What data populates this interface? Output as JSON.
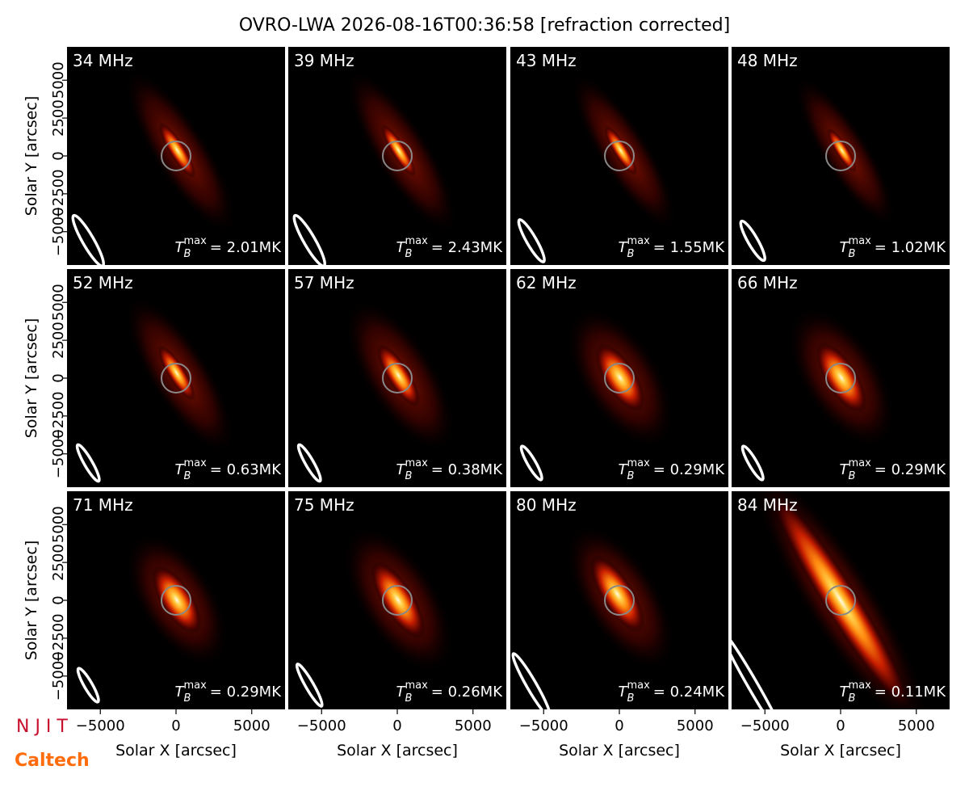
{
  "title": "OVRO-LWA 2026-08-16T00:36:58 [refraction corrected]",
  "axes": {
    "xlabel": "Solar X [arcsec]",
    "ylabel": "Solar Y [arcsec]",
    "xlim": [
      -7200,
      7200
    ],
    "ylim": [
      -7200,
      7200
    ],
    "xticks": [
      {
        "value": -5000,
        "label": "−5000"
      },
      0,
      5000
    ],
    "yticks": [
      {
        "value": -5000,
        "label": "−5000"
      },
      {
        "value": -2500,
        "label": "−2500"
      },
      0,
      2500,
      5000
    ]
  },
  "tmax_symbol": {
    "base": "T",
    "sub": "B",
    "sup": "max"
  },
  "chart_data": [
    {
      "type": "image",
      "label": "34 MHz",
      "tmax": "= 2.01MK"
    },
    {
      "type": "image",
      "label": "39 MHz",
      "tmax": "= 2.43MK"
    },
    {
      "type": "image",
      "label": "43 MHz",
      "tmax": "= 1.55MK"
    },
    {
      "type": "image",
      "label": "48 MHz",
      "tmax": "= 1.02MK"
    },
    {
      "type": "image",
      "label": "52 MHz",
      "tmax": "= 0.63MK"
    },
    {
      "type": "image",
      "label": "57 MHz",
      "tmax": "= 0.38MK"
    },
    {
      "type": "image",
      "label": "62 MHz",
      "tmax": "= 0.29MK"
    },
    {
      "type": "image",
      "label": "66 MHz",
      "tmax": "= 0.29MK"
    },
    {
      "type": "image",
      "label": "71 MHz",
      "tmax": "= 0.29MK"
    },
    {
      "type": "image",
      "label": "75 MHz",
      "tmax": "= 0.26MK"
    },
    {
      "type": "image",
      "label": "80 MHz",
      "tmax": "= 0.24MK"
    },
    {
      "type": "image",
      "label": "84 MHz",
      "tmax": "= 0.11MK"
    }
  ],
  "logos": {
    "njit": "N J I T",
    "caltech": "Caltech"
  }
}
